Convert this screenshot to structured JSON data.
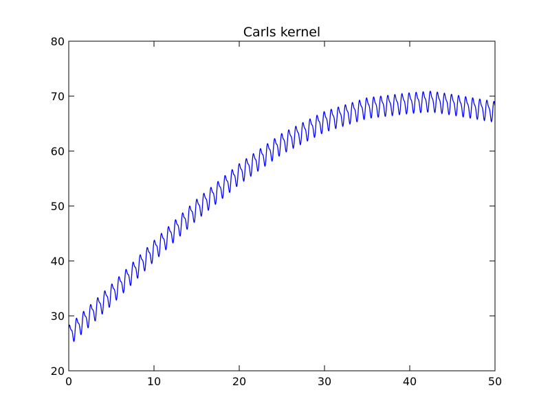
{
  "chart_data": {
    "type": "line",
    "title": "Carls kernel",
    "xlabel": "",
    "ylabel": "",
    "xlim": [
      0,
      50
    ],
    "ylim": [
      20,
      80
    ],
    "x_ticks": [
      0,
      10,
      20,
      30,
      40,
      50
    ],
    "y_ticks": [
      20,
      30,
      40,
      50,
      60,
      70,
      80
    ],
    "x_tick_labels": [
      "0",
      "10",
      "20",
      "30",
      "40",
      "50"
    ],
    "y_tick_labels": [
      "20",
      "30",
      "40",
      "50",
      "60",
      "70",
      "80"
    ],
    "grid": false,
    "legend": false,
    "series": [
      {
        "color": "#0000ff",
        "trend": {
          "x": [
            0,
            5,
            10,
            15,
            20,
            25,
            30,
            35,
            40,
            42.5,
            45,
            50
          ],
          "y": [
            26.5,
            34,
            42,
            49.5,
            56,
            61.5,
            65.5,
            68,
            68.9,
            69.2,
            68.6,
            67.3
          ]
        },
        "oscillation": {
          "period": 0.83,
          "amplitude": 1.6,
          "secondary_amplitude": 0.6
        }
      }
    ]
  }
}
